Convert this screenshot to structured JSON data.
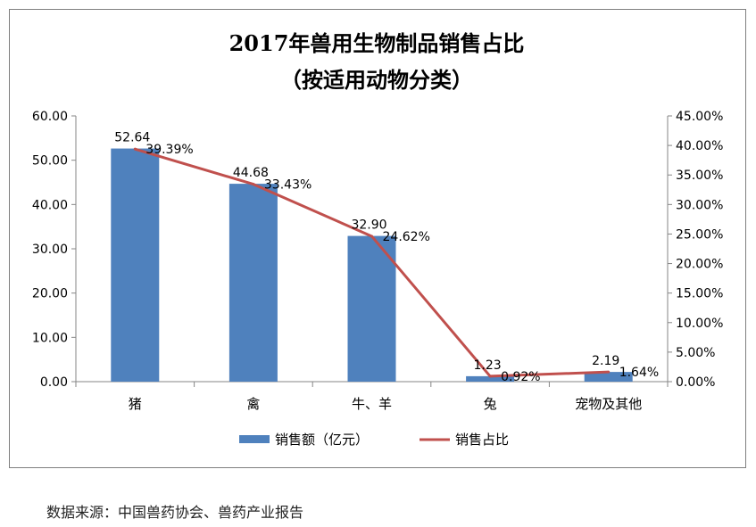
{
  "chart_data": {
    "type": "bar+line",
    "title_line1": "2017年兽用生物制品销售占比",
    "title_line2": "（按适用动物分类）",
    "categories": [
      "猪",
      "禽",
      "牛、羊",
      "兔",
      "宠物及其他"
    ],
    "series": [
      {
        "name": "销售额（亿元）",
        "type": "bar",
        "axis": "left",
        "color": "#4f81bd",
        "values": [
          52.64,
          44.68,
          32.9,
          1.23,
          2.19
        ],
        "labels": [
          "52.64",
          "44.68",
          "32.90",
          "1.23",
          "2.19"
        ]
      },
      {
        "name": "销售占比",
        "type": "line",
        "axis": "right",
        "color": "#c0504d",
        "values": [
          39.39,
          33.43,
          24.62,
          0.92,
          1.64
        ],
        "labels": [
          "39.39%",
          "33.43%",
          "24.62%",
          "0.92%",
          "1.64%"
        ]
      }
    ],
    "y_left": {
      "min": 0,
      "max": 60,
      "step": 10,
      "tick_labels": [
        "0.00",
        "10.00",
        "20.00",
        "30.00",
        "40.00",
        "50.00",
        "60.00"
      ]
    },
    "y_right": {
      "min": 0,
      "max": 45,
      "step": 5,
      "tick_labels": [
        "0.00%",
        "5.00%",
        "10.00%",
        "15.00%",
        "20.00%",
        "25.00%",
        "30.00%",
        "35.00%",
        "40.00%",
        "45.00%"
      ]
    },
    "legend_position": "bottom",
    "grid": false
  },
  "source_note": "数据来源：中国兽药协会、兽药产业报告"
}
